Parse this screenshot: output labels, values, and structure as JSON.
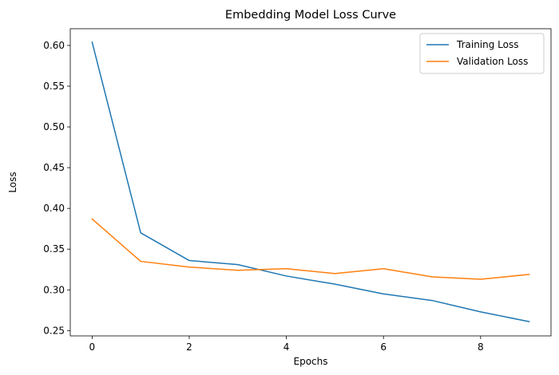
{
  "chart_data": {
    "type": "line",
    "title": "Embedding Model Loss Curve",
    "xlabel": "Epochs",
    "ylabel": "Loss",
    "x": [
      0,
      1,
      2,
      3,
      4,
      5,
      6,
      7,
      8,
      9
    ],
    "xlim": [
      -0.45,
      9.45
    ],
    "ylim": [
      0.2435,
      0.6205
    ],
    "xticks": [
      0,
      2,
      4,
      6,
      8
    ],
    "yticks": [
      0.25,
      0.3,
      0.35,
      0.4,
      0.45,
      0.5,
      0.55,
      0.6
    ],
    "ytick_labels": [
      "0.25",
      "0.30",
      "0.35",
      "0.40",
      "0.45",
      "0.50",
      "0.55",
      "0.60"
    ],
    "grid": false,
    "legend_position": "top-right",
    "series": [
      {
        "name": "Training Loss",
        "color": "#1f77b4",
        "values": [
          0.604,
          0.37,
          0.336,
          0.331,
          0.317,
          0.307,
          0.295,
          0.287,
          0.273,
          0.261
        ]
      },
      {
        "name": "Validation Loss",
        "color": "#ff7f0e",
        "values": [
          0.387,
          0.335,
          0.328,
          0.324,
          0.326,
          0.32,
          0.326,
          0.316,
          0.313,
          0.319
        ]
      }
    ]
  }
}
